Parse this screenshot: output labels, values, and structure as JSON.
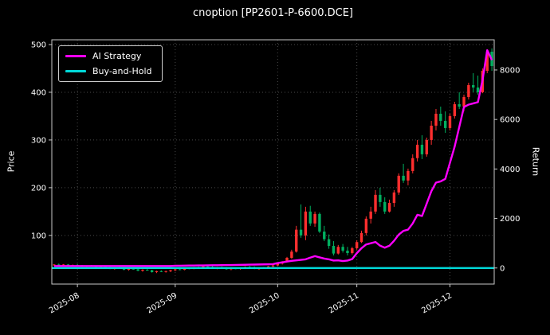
{
  "chart_data": {
    "type": "candlestick",
    "title": "cnoption [PP2601-P-6600.DCE]",
    "ylabel_left": "Price",
    "ylabel_right": "Return",
    "left_ticks": [
      100,
      200,
      300,
      400,
      500
    ],
    "left_ylim": [
      -2,
      510
    ],
    "right_ticks": [
      0,
      2000,
      4000,
      6000,
      8000
    ],
    "right_ylim": [
      -650,
      9220
    ],
    "x_month_ticks": [
      "2025-08",
      "2025-09",
      "2025-10",
      "2025-11",
      "2025-12"
    ],
    "grid": true,
    "legend_position": "upper-left",
    "colors": {
      "up": "#ff2e2e",
      "down": "#00b060",
      "ai": "#ff00ff",
      "bh": "#00d8d8",
      "grid": "#4a4a4a",
      "spine": "#c8c8c8",
      "text": "#ffffff",
      "bg": "#000000"
    },
    "legend": [
      {
        "label": "AI Strategy",
        "color": "#ff00ff"
      },
      {
        "label": "Buy-and-Hold",
        "color": "#00d8d8"
      }
    ],
    "buy_and_hold_return": 0,
    "candles": [
      [
        "2025-07-25",
        38,
        40,
        36,
        39
      ],
      [
        "2025-07-28",
        39,
        41,
        37,
        38
      ],
      [
        "2025-07-29",
        38,
        40,
        36,
        39
      ],
      [
        "2025-07-30",
        39,
        40,
        35,
        36
      ],
      [
        "2025-07-31",
        36,
        39,
        34,
        38
      ],
      [
        "2025-08-01",
        38,
        40,
        35,
        36
      ],
      [
        "2025-08-04",
        36,
        38,
        33,
        34
      ],
      [
        "2025-08-05",
        34,
        37,
        32,
        36
      ],
      [
        "2025-08-06",
        36,
        38,
        34,
        35
      ],
      [
        "2025-08-07",
        35,
        36,
        31,
        32
      ],
      [
        "2025-08-08",
        32,
        35,
        30,
        34
      ],
      [
        "2025-08-11",
        34,
        36,
        32,
        33
      ],
      [
        "2025-08-12",
        33,
        34,
        29,
        30
      ],
      [
        "2025-08-13",
        30,
        33,
        28,
        32
      ],
      [
        "2025-08-14",
        32,
        34,
        30,
        31
      ],
      [
        "2025-08-15",
        31,
        32,
        27,
        28
      ],
      [
        "2025-08-18",
        28,
        31,
        26,
        30
      ],
      [
        "2025-08-19",
        30,
        32,
        28,
        29
      ],
      [
        "2025-08-20",
        29,
        30,
        25,
        26
      ],
      [
        "2025-08-21",
        26,
        29,
        24,
        28
      ],
      [
        "2025-08-22",
        28,
        30,
        26,
        27
      ],
      [
        "2025-08-25",
        27,
        28,
        22,
        23
      ],
      [
        "2025-08-26",
        23,
        26,
        21,
        25
      ],
      [
        "2025-08-27",
        25,
        27,
        23,
        24
      ],
      [
        "2025-08-28",
        24,
        26,
        22,
        25
      ],
      [
        "2025-08-29",
        25,
        28,
        23,
        27
      ],
      [
        "2025-09-01",
        27,
        30,
        25,
        29
      ],
      [
        "2025-09-02",
        29,
        31,
        27,
        28
      ],
      [
        "2025-09-03",
        28,
        32,
        27,
        31
      ],
      [
        "2025-09-04",
        31,
        33,
        29,
        30
      ],
      [
        "2025-09-05",
        30,
        34,
        29,
        33
      ],
      [
        "2025-09-08",
        33,
        35,
        31,
        32
      ],
      [
        "2025-09-09",
        32,
        36,
        31,
        35
      ],
      [
        "2025-09-10",
        35,
        37,
        33,
        34
      ],
      [
        "2025-09-11",
        34,
        36,
        30,
        31
      ],
      [
        "2025-09-12",
        31,
        34,
        29,
        33
      ],
      [
        "2025-09-15",
        33,
        35,
        31,
        32
      ],
      [
        "2025-09-16",
        32,
        34,
        28,
        29
      ],
      [
        "2025-09-17",
        29,
        32,
        27,
        31
      ],
      [
        "2025-09-18",
        31,
        33,
        29,
        30
      ],
      [
        "2025-09-19",
        30,
        33,
        28,
        32
      ],
      [
        "2025-09-22",
        32,
        35,
        30,
        34
      ],
      [
        "2025-09-23",
        34,
        36,
        32,
        33
      ],
      [
        "2025-09-24",
        33,
        35,
        29,
        30
      ],
      [
        "2025-09-25",
        30,
        32,
        28,
        31
      ],
      [
        "2025-09-26",
        31,
        34,
        30,
        33
      ],
      [
        "2025-09-29",
        33,
        36,
        31,
        35
      ],
      [
        "2025-09-30",
        35,
        38,
        33,
        37
      ],
      [
        "2025-10-09",
        37,
        42,
        36,
        41
      ],
      [
        "2025-10-10",
        41,
        46,
        39,
        45
      ],
      [
        "2025-10-13",
        45,
        55,
        44,
        53
      ],
      [
        "2025-10-14",
        53,
        70,
        51,
        66
      ],
      [
        "2025-10-15",
        66,
        120,
        64,
        112
      ],
      [
        "2025-10-16",
        112,
        165,
        95,
        100
      ],
      [
        "2025-10-17",
        100,
        160,
        90,
        150
      ],
      [
        "2025-10-20",
        150,
        162,
        120,
        125
      ],
      [
        "2025-10-21",
        125,
        150,
        118,
        145
      ],
      [
        "2025-10-22",
        145,
        148,
        105,
        108
      ],
      [
        "2025-10-23",
        108,
        120,
        88,
        92
      ],
      [
        "2025-10-24",
        92,
        102,
        72,
        78
      ],
      [
        "2025-10-27",
        78,
        88,
        58,
        62
      ],
      [
        "2025-10-28",
        62,
        80,
        60,
        76
      ],
      [
        "2025-10-29",
        76,
        82,
        64,
        68
      ],
      [
        "2025-10-30",
        68,
        76,
        58,
        63
      ],
      [
        "2025-10-31",
        63,
        76,
        60,
        73
      ],
      [
        "2025-11-03",
        73,
        90,
        70,
        86
      ],
      [
        "2025-11-04",
        86,
        110,
        84,
        105
      ],
      [
        "2025-11-05",
        105,
        140,
        100,
        135
      ],
      [
        "2025-11-06",
        135,
        160,
        125,
        150
      ],
      [
        "2025-11-07",
        150,
        195,
        145,
        185
      ],
      [
        "2025-11-10",
        185,
        200,
        160,
        170
      ],
      [
        "2025-11-11",
        170,
        180,
        145,
        150
      ],
      [
        "2025-11-12",
        150,
        175,
        148,
        168
      ],
      [
        "2025-11-13",
        168,
        195,
        160,
        190
      ],
      [
        "2025-11-14",
        190,
        230,
        185,
        225
      ],
      [
        "2025-11-17",
        225,
        250,
        210,
        215
      ],
      [
        "2025-11-18",
        215,
        240,
        205,
        235
      ],
      [
        "2025-11-19",
        235,
        270,
        230,
        262
      ],
      [
        "2025-11-20",
        262,
        300,
        255,
        290
      ],
      [
        "2025-11-21",
        290,
        310,
        260,
        270
      ],
      [
        "2025-11-24",
        270,
        305,
        265,
        300
      ],
      [
        "2025-11-25",
        300,
        340,
        290,
        330
      ],
      [
        "2025-11-26",
        330,
        365,
        320,
        355
      ],
      [
        "2025-11-27",
        355,
        370,
        330,
        340
      ],
      [
        "2025-11-28",
        340,
        360,
        315,
        325
      ],
      [
        "2025-12-01",
        325,
        355,
        320,
        350
      ],
      [
        "2025-12-02",
        350,
        380,
        345,
        375
      ],
      [
        "2025-12-03",
        375,
        400,
        365,
        370
      ],
      [
        "2025-12-04",
        370,
        395,
        360,
        390
      ],
      [
        "2025-12-05",
        390,
        420,
        385,
        415
      ],
      [
        "2025-12-08",
        415,
        440,
        400,
        410
      ],
      [
        "2025-12-09",
        410,
        435,
        395,
        400
      ],
      [
        "2025-12-10",
        400,
        450,
        398,
        445
      ],
      [
        "2025-12-11",
        445,
        490,
        440,
        485
      ],
      [
        "2025-12-12",
        485,
        492,
        445,
        455
      ]
    ],
    "ai_strategy_return": [
      80,
      80,
      80,
      80,
      80,
      80,
      80,
      80,
      80,
      80,
      80,
      80,
      80,
      80,
      80,
      80,
      80,
      80,
      80,
      80,
      80,
      80,
      80,
      80,
      80,
      80,
      90,
      92,
      95,
      98,
      100,
      102,
      105,
      108,
      110,
      112,
      115,
      118,
      120,
      125,
      128,
      130,
      135,
      138,
      142,
      146,
      150,
      155,
      200,
      230,
      260,
      290,
      310,
      330,
      350,
      420,
      480,
      430,
      380,
      350,
      300,
      310,
      280,
      300,
      360,
      600,
      800,
      950,
      1000,
      1050,
      900,
      820,
      900,
      1100,
      1350,
      1500,
      1550,
      1800,
      2150,
      2100,
      2600,
      3100,
      3450,
      3500,
      3600,
      4250,
      4900,
      5700,
      6500,
      6600,
      6650,
      6700,
      7600,
      8800,
      8400
    ]
  }
}
